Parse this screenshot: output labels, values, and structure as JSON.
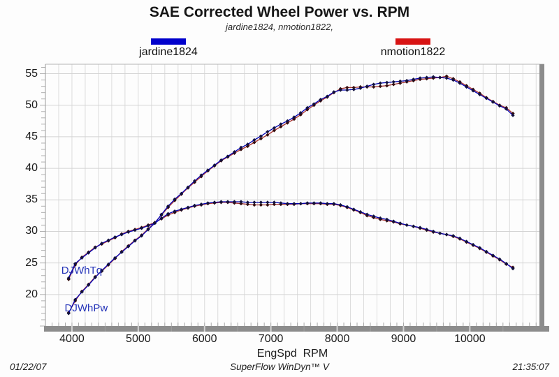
{
  "page": {
    "title": "SAE Corrected Wheel Power vs. RPM",
    "subtitle": "jardine1824, nmotion1822,"
  },
  "footer": {
    "date": "01/22/07",
    "app": "SuperFlow WinDyn™ V",
    "time": "21:35:07"
  },
  "chart_data": {
    "type": "line",
    "title": "SAE Corrected Wheel Power vs. RPM",
    "subtitle": "jardine1824, nmotion1822,",
    "xlabel": "EngSpd  RPM",
    "ylabel": "",
    "xlim": [
      3600,
      11050
    ],
    "ylim": [
      15,
      56.5
    ],
    "x_ticks": [
      4000,
      5000,
      6000,
      7000,
      8000,
      9000,
      10000
    ],
    "x_grid_step": 200,
    "x_minor_tick_step": 100,
    "y_ticks": [
      20,
      25,
      30,
      35,
      40,
      45,
      50,
      55
    ],
    "y_minor_tick_step": 1,
    "grid": true,
    "legend_position": "top",
    "colors": {
      "grid_v": "#dcdcdc",
      "grid_h": "#d4d4d4",
      "axis_bar": "#8c8c8c",
      "notch_major": "#d2d2d2",
      "notch_minor": "#9e9e9e",
      "frame": "#b5b5b5",
      "minor_tick": "#b0b0b0"
    },
    "x_rpm": [
      3950,
      4050,
      4150,
      4250,
      4350,
      4450,
      4550,
      4650,
      4750,
      4850,
      4950,
      5050,
      5150,
      5250,
      5350,
      5450,
      5550,
      5650,
      5750,
      5850,
      5950,
      6050,
      6150,
      6250,
      6350,
      6450,
      6550,
      6650,
      6750,
      6850,
      6950,
      7050,
      7150,
      7250,
      7350,
      7450,
      7550,
      7650,
      7750,
      7850,
      7950,
      8050,
      8150,
      8250,
      8350,
      8450,
      8550,
      8650,
      8750,
      8850,
      8950,
      9050,
      9150,
      9250,
      9350,
      9450,
      9550,
      9650,
      9750,
      9850,
      9950,
      10050,
      10150,
      10250,
      10350,
      10450,
      10550,
      10650
    ],
    "series": [
      {
        "name": "nmotion1822",
        "color": "#a83030",
        "legend_color": "#d81414",
        "marker": "diamond",
        "marker_color": "#330c0c",
        "curves": [
          {
            "label": "DJWhPw",
            "values": [
              17.1,
              19.0,
              20.5,
              21.6,
              22.8,
              23.7,
              24.7,
              25.7,
              26.8,
              27.7,
              28.6,
              29.4,
              30.4,
              31.4,
              32.6,
              33.8,
              34.9,
              35.9,
              36.9,
              37.8,
              38.7,
              39.6,
              40.4,
              41.2,
              41.8,
              42.4,
              43.0,
              43.5,
              44.1,
              44.7,
              45.3,
              46.0,
              46.6,
              47.2,
              47.8,
              48.5,
              49.3,
              50.0,
              50.7,
              51.3,
              52.0,
              52.6,
              52.8,
              52.8,
              52.9,
              52.9,
              52.9,
              53.0,
              53.1,
              53.3,
              53.5,
              53.7,
              53.9,
              54.1,
              54.2,
              54.3,
              54.4,
              54.6,
              54.2,
              53.7,
              53.1,
              52.5,
              51.9,
              51.2,
              50.6,
              50.0,
              49.6,
              48.7
            ]
          },
          {
            "label": "DJWhTq",
            "values": [
              22.4,
              24.7,
              25.9,
              26.7,
              27.5,
              28.0,
              28.5,
              29.0,
              29.6,
              30.0,
              30.3,
              30.6,
              31.0,
              31.4,
              32.0,
              32.6,
              33.0,
              33.4,
              33.7,
              34.0,
              34.2,
              34.4,
              34.5,
              34.6,
              34.6,
              34.5,
              34.4,
              34.3,
              34.2,
              34.2,
              34.2,
              34.3,
              34.3,
              34.3,
              34.3,
              34.4,
              34.4,
              34.4,
              34.4,
              34.3,
              34.3,
              34.1,
              33.8,
              33.4,
              33.0,
              32.5,
              32.2,
              31.9,
              31.7,
              31.5,
              31.2,
              31.0,
              30.8,
              30.5,
              30.2,
              29.9,
              29.7,
              29.5,
              29.2,
              28.8,
              28.3,
              27.8,
              27.3,
              26.7,
              26.1,
              25.5,
              24.8,
              24.3
            ]
          }
        ]
      },
      {
        "name": "jardine1824",
        "color": "#0000b4",
        "legend_color": "#0000cc",
        "marker": "diamond",
        "marker_color": "#10103c",
        "curves": [
          {
            "label": "DJWhPw",
            "values": [
              17.0,
              19.2,
              20.4,
              21.5,
              22.7,
              23.8,
              24.8,
              25.8,
              26.7,
              27.6,
              28.5,
              29.3,
              30.3,
              31.3,
              32.7,
              34.0,
              35.1,
              36.0,
              37.0,
              38.0,
              38.9,
              39.7,
              40.5,
              41.3,
              41.9,
              42.6,
              43.3,
              43.8,
              44.5,
              45.1,
              45.8,
              46.4,
              47.0,
              47.5,
              48.1,
              48.8,
              49.6,
              50.2,
              50.9,
              51.4,
              52.1,
              52.4,
              52.4,
              52.5,
              52.7,
              53.0,
              53.3,
              53.5,
              53.6,
              53.7,
              53.8,
              53.9,
              54.1,
              54.3,
              54.4,
              54.5,
              54.4,
              54.3,
              54.0,
              53.5,
              52.9,
              52.3,
              51.7,
              51.1,
              50.5,
              49.9,
              49.4,
              48.4
            ]
          },
          {
            "label": "DJWhTq",
            "values": [
              22.6,
              24.9,
              25.8,
              26.6,
              27.4,
              28.1,
              28.6,
              29.1,
              29.5,
              29.9,
              30.2,
              30.5,
              30.9,
              31.3,
              32.1,
              32.8,
              33.2,
              33.5,
              33.8,
              34.1,
              34.3,
              34.5,
              34.6,
              34.7,
              34.7,
              34.7,
              34.7,
              34.6,
              34.6,
              34.6,
              34.6,
              34.6,
              34.5,
              34.4,
              34.4,
              34.4,
              34.5,
              34.5,
              34.5,
              34.4,
              34.4,
              34.2,
              33.9,
              33.5,
              33.1,
              32.7,
              32.4,
              32.1,
              31.9,
              31.6,
              31.3,
              31.0,
              30.8,
              30.6,
              30.3,
              30.0,
              29.7,
              29.5,
              29.3,
              28.9,
              28.4,
              27.9,
              27.4,
              26.8,
              26.2,
              25.6,
              24.9,
              24.1
            ]
          }
        ]
      }
    ],
    "curve_labels": [
      {
        "text": "DJWhTq",
        "rpm": 3840,
        "value": 23.3
      },
      {
        "text": "DJWhPw",
        "rpm": 3890,
        "value": 17.3
      }
    ]
  }
}
